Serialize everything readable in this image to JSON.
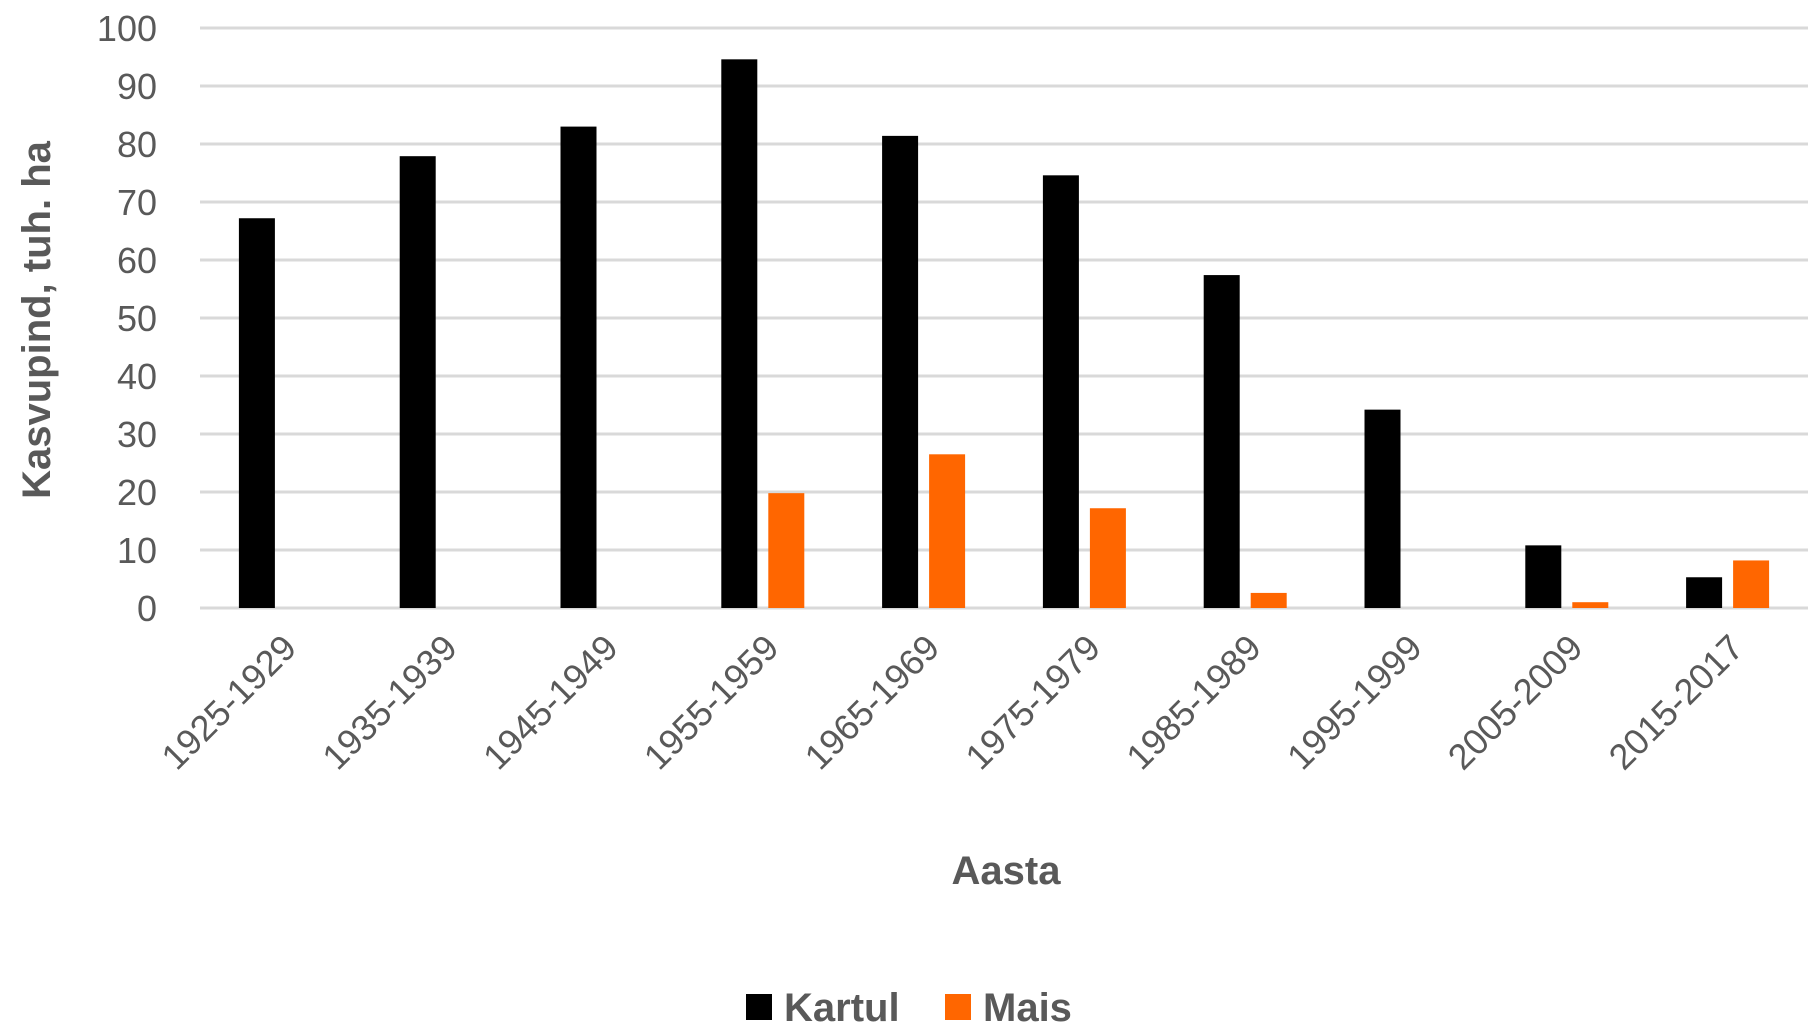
{
  "chart_data": {
    "type": "bar",
    "xlabel": "Aasta",
    "ylabel": "Kasvupind, tuh. ha",
    "ylim": [
      0,
      100
    ],
    "yticks": [
      0,
      10,
      20,
      30,
      40,
      50,
      60,
      70,
      80,
      90,
      100
    ],
    "grid": true,
    "legend_position": "bottom",
    "categories": [
      "1925-1929",
      "1935-1939",
      "1945-1949",
      "1955-1959",
      "1965-1969",
      "1975-1979",
      "1985-1989",
      "1995-1999",
      "2005-2009",
      "2015-2017"
    ],
    "series": [
      {
        "name": "Kartul",
        "color": "#000000",
        "values": [
          67.2,
          77.9,
          83.0,
          94.6,
          81.4,
          74.6,
          57.4,
          34.2,
          10.8,
          5.3
        ]
      },
      {
        "name": "Mais",
        "color": "#ff6600",
        "values": [
          0,
          0,
          0,
          19.8,
          26.5,
          17.2,
          2.6,
          0,
          1.0,
          8.2
        ]
      }
    ]
  }
}
